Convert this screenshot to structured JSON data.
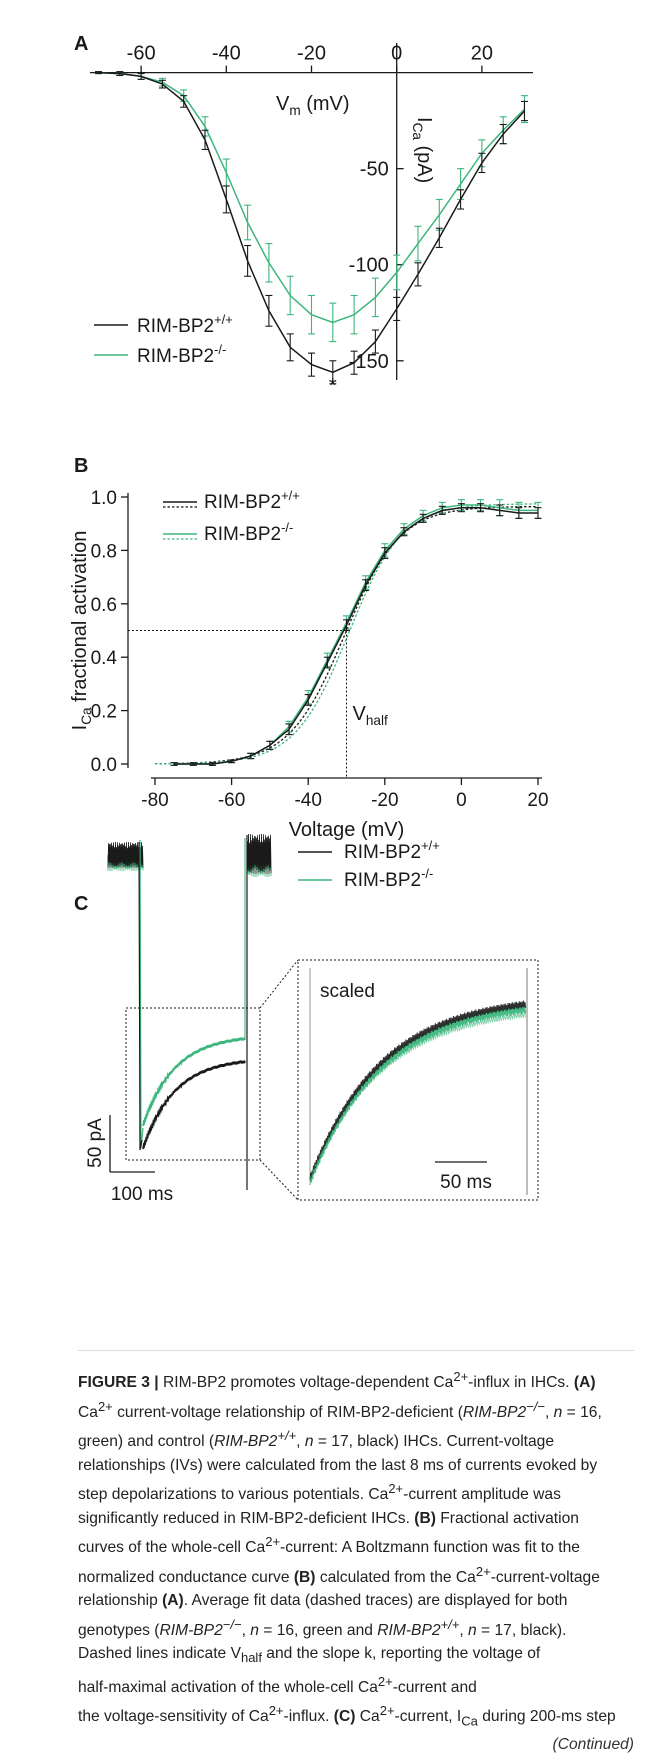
{
  "panel_labels": [
    "A",
    "B",
    "C"
  ],
  "colors": {
    "control": "#1a1a1a",
    "deficient": "#3cb67c"
  },
  "chart_data": [
    {
      "type": "line",
      "panel": "A",
      "xlabel_base": "V",
      "xlabel_sub": "m",
      "xlabel_unit": " (mV)",
      "ylabel_base": "I",
      "ylabel_sub": "Ca",
      "ylabel_unit": " (pA)",
      "xlim": [
        -72,
        32
      ],
      "ylim": [
        -160,
        5
      ],
      "x_ticks": [
        -60,
        -40,
        -20,
        0,
        20
      ],
      "x_tick_labels": [
        "-60",
        "-40",
        "-20",
        "0",
        "20"
      ],
      "y_ticks": [
        -50,
        -100,
        -150
      ],
      "y_tick_labels": [
        "-50",
        "-100",
        "-150"
      ],
      "annotation": "*",
      "annotation_at": [
        -15,
        -162
      ],
      "legend_position": "bottom-left",
      "series": [
        {
          "name_base": "RIM-BP2",
          "name_sup": "+/+",
          "color": "#1a1a1a",
          "x": [
            -70,
            -65,
            -60,
            -55,
            -50,
            -45,
            -40,
            -35,
            -30,
            -25,
            -20,
            -15,
            -10,
            -5,
            0,
            5,
            10,
            15,
            20,
            25,
            30
          ],
          "y": [
            0,
            -0.5,
            -2,
            -6,
            -15,
            -35,
            -66,
            -98,
            -124,
            -143,
            -152,
            -156,
            -151,
            -140,
            -123,
            -105,
            -86,
            -66,
            -47,
            -32,
            -20
          ],
          "err": [
            0.5,
            1,
            1.5,
            2,
            3,
            5,
            7,
            8,
            8,
            7,
            6,
            6,
            6,
            6,
            6,
            6,
            5,
            5,
            5,
            5,
            5
          ]
        },
        {
          "name_base": "RIM-BP2",
          "name_sup": "-/-",
          "color": "#3cb67c",
          "x": [
            -70,
            -65,
            -60,
            -55,
            -50,
            -45,
            -40,
            -35,
            -30,
            -25,
            -20,
            -15,
            -10,
            -5,
            0,
            5,
            10,
            15,
            20,
            25,
            30
          ],
          "y": [
            0,
            -0.5,
            -2,
            -5,
            -12,
            -28,
            -52,
            -78,
            -99,
            -116,
            -126,
            -130,
            -126,
            -117,
            -104,
            -89,
            -74,
            -58,
            -42,
            -30,
            -19
          ],
          "err": [
            0.5,
            1,
            1.5,
            2,
            3,
            5,
            7,
            9,
            10,
            10,
            10,
            10,
            10,
            10,
            9,
            9,
            8,
            8,
            7,
            7,
            7
          ]
        }
      ]
    },
    {
      "type": "line",
      "panel": "B",
      "title": "",
      "xlabel": "Voltage (mV)",
      "ylabel_base": "I",
      "ylabel_sub": "Ca",
      "ylabel_rest": " fractional activation",
      "xlim": [
        -80,
        20
      ],
      "ylim": [
        0,
        1
      ],
      "x_ticks": [
        -80,
        -60,
        -40,
        -20,
        0,
        20
      ],
      "x_tick_labels": [
        "-80",
        "-60",
        "-40",
        "-20",
        "0",
        "20"
      ],
      "y_ticks": [
        0,
        0.2,
        0.4,
        0.6,
        0.8,
        1.0
      ],
      "y_tick_labels": [
        "0.0",
        "0.2",
        "0.4",
        "0.6",
        "0.8",
        "1.0"
      ],
      "v_half": -30,
      "v_half_label_base": "V",
      "v_half_label_sub": "half",
      "legend_position": "top-left",
      "series": [
        {
          "name_base": "RIM-BP2",
          "name_sup": "+/+",
          "color": "#1a1a1a",
          "x": [
            -75,
            -70,
            -65,
            -60,
            -55,
            -50,
            -45,
            -40,
            -35,
            -30,
            -25,
            -20,
            -15,
            -10,
            -5,
            0,
            5,
            10,
            15,
            20
          ],
          "y": [
            0.0,
            0.0,
            0.0,
            0.01,
            0.03,
            0.07,
            0.13,
            0.24,
            0.38,
            0.52,
            0.67,
            0.79,
            0.87,
            0.92,
            0.95,
            0.96,
            0.96,
            0.95,
            0.94,
            0.94
          ],
          "err": [
            0.005,
            0.005,
            0.005,
            0.005,
            0.01,
            0.015,
            0.02,
            0.02,
            0.02,
            0.02,
            0.02,
            0.02,
            0.015,
            0.015,
            0.015,
            0.015,
            0.015,
            0.02,
            0.02,
            0.02
          ]
        },
        {
          "name_base": "RIM-BP2",
          "name_sup": "-/-",
          "color": "#3cb67c",
          "x": [
            -75,
            -70,
            -65,
            -60,
            -55,
            -50,
            -45,
            -40,
            -35,
            -30,
            -25,
            -20,
            -15,
            -10,
            -5,
            0,
            5,
            10,
            15,
            20
          ],
          "y": [
            0.0,
            0.0,
            0.0,
            0.01,
            0.03,
            0.07,
            0.14,
            0.25,
            0.39,
            0.53,
            0.68,
            0.8,
            0.88,
            0.93,
            0.96,
            0.97,
            0.97,
            0.96,
            0.95,
            0.95
          ],
          "err": [
            0.005,
            0.005,
            0.005,
            0.005,
            0.01,
            0.015,
            0.02,
            0.025,
            0.025,
            0.025,
            0.025,
            0.025,
            0.02,
            0.02,
            0.02,
            0.02,
            0.02,
            0.03,
            0.03,
            0.03
          ]
        }
      ]
    },
    {
      "type": "line",
      "panel": "C",
      "scale_y_label": "50 pA",
      "scale_x_label": "100 ms",
      "inset_label": "scaled",
      "inset_scale_label": "50 ms",
      "legend_position": "top-right",
      "series": [
        {
          "name_base": "RIM-BP2",
          "name_sup": "+/+",
          "color": "#1a1a1a"
        },
        {
          "name_base": "RIM-BP2",
          "name_sup": "-/-",
          "color": "#3cb67c"
        }
      ]
    }
  ],
  "caption": {
    "lead": "FIGURE 3 |",
    "lines": [
      [
        "RIM-BP2 promotes voltage-dependent Ca",
        {
          "sup": "2+"
        },
        "-influx in IHCs. ",
        {
          "b": "(A)"
        }
      ],
      [
        "Ca",
        {
          "sup": "2+"
        },
        " current-voltage relationship of RIM-BP2-deficient (",
        {
          "i": "RIM-BP2"
        },
        {
          "supi": "−/−"
        },
        ", ",
        {
          "i": "n"
        },
        " = 16,"
      ],
      [
        "green) and control (",
        {
          "i": "RIM-BP2"
        },
        {
          "supi": "+/+"
        },
        ", ",
        {
          "i": "n"
        },
        " = 17, black) IHCs. Current-voltage"
      ],
      [
        "relationships (IVs) were calculated from the last 8 ms of currents evoked by"
      ],
      [
        "step depolarizations to various potentials. Ca",
        {
          "sup": "2+"
        },
        "-current amplitude was"
      ],
      [
        "significantly reduced in RIM-BP2-deficient IHCs. ",
        {
          "b": "(B)"
        },
        " Fractional activation"
      ],
      [
        "curves of the whole-cell Ca",
        {
          "sup": "2+"
        },
        "-current: A Boltzmann function was fit to the"
      ],
      [
        "normalized conductance curve ",
        {
          "b": "(B)"
        },
        " calculated from the Ca",
        {
          "sup": "2+"
        },
        "-current-voltage"
      ],
      [
        "relationship ",
        {
          "b": "(A)"
        },
        ". Average fit data (dashed traces) are displayed for both"
      ],
      [
        "genotypes (",
        {
          "i": "RIM-BP2"
        },
        {
          "supi": "−/−"
        },
        ", ",
        {
          "i": "n"
        },
        " = 16, green and ",
        {
          "i": "RIM-BP2"
        },
        {
          "supi": "+/+"
        },
        ", ",
        {
          "i": "n"
        },
        " = 17, black)."
      ],
      [
        "Dashed lines indicate V",
        {
          "sub": "half"
        },
        " and the slope k, reporting the voltage of"
      ],
      [
        "half-maximal activation of the whole-cell Ca",
        {
          "sup": "2+"
        },
        "-current and"
      ],
      [
        "the voltage-sensitivity of Ca",
        {
          "sup": "2+"
        },
        "-influx. ",
        {
          "b": "(C)"
        },
        " Ca",
        {
          "sup": "2+"
        },
        "-current, I",
        {
          "sub": "Ca"
        },
        " during 200-ms step"
      ]
    ],
    "continued": "(Continued)"
  }
}
